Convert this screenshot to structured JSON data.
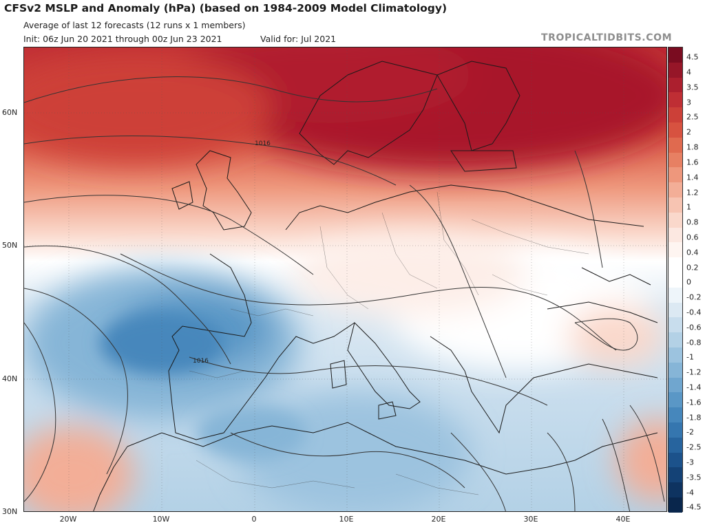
{
  "header": {
    "title": "CFSv2 MSLP and Anomaly (hPa) (based on 1984-2009 Model Climatology)",
    "subtitle": "Average of last 12 forecasts (12 runs x 1 members)",
    "init": "Init: 06z Jun 20 2021 through 00z Jun 23 2021",
    "valid": "Valid for: Jul 2021",
    "brand": "TROPICALTIDBITS.COM"
  },
  "map": {
    "lat_labels": [
      "60N",
      "50N",
      "40N",
      "30N"
    ],
    "lon_labels": [
      "20W",
      "10W",
      "0",
      "10E",
      "20E",
      "30E",
      "40E"
    ],
    "contour_labels": [
      "1016",
      "1016"
    ]
  },
  "colorbar": {
    "labels": [
      "4.5",
      "4",
      "3.5",
      "3",
      "2.5",
      "2",
      "1.8",
      "1.6",
      "1.4",
      "1.2",
      "1",
      "0.8",
      "0.6",
      "0.4",
      "0.2",
      "0",
      "-0.2",
      "-0.4",
      "-0.6",
      "-0.8",
      "-1",
      "-1.2",
      "-1.4",
      "-1.6",
      "-1.8",
      "-2",
      "-2.5",
      "-3",
      "-3.5",
      "-4",
      "-4.5"
    ],
    "colors": [
      "#7a0c20",
      "#961628",
      "#ac1f2e",
      "#bf2e34",
      "#cc4038",
      "#d75240",
      "#e06a4f",
      "#e78063",
      "#ee977c",
      "#f3ae97",
      "#f7c4b2",
      "#fad8cb",
      "#fce8e1",
      "#fef5f1",
      "#ffffff",
      "#ffffff",
      "#eef5fa",
      "#dce9f3",
      "#c8dded",
      "#b3d1e6",
      "#9cc3df",
      "#86b5d7",
      "#70a6cf",
      "#5a97c6",
      "#4687bc",
      "#3576af",
      "#27649e",
      "#1c528b",
      "#144276",
      "#0e3360",
      "#09264c"
    ]
  }
}
